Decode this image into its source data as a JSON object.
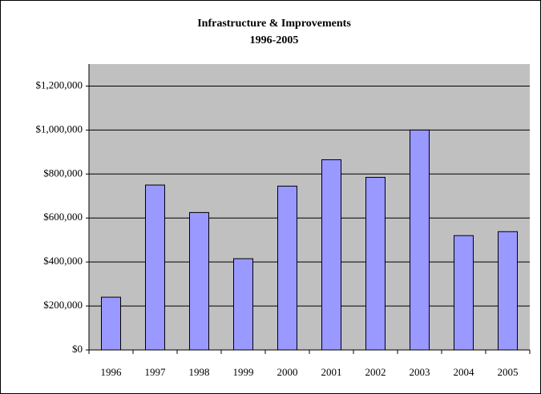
{
  "chart_data": {
    "type": "bar",
    "title": "Infrastructure & Improvements",
    "subtitle": "1996-2005",
    "categories": [
      "1996",
      "1997",
      "1998",
      "1999",
      "2000",
      "2001",
      "2002",
      "2003",
      "2004",
      "2005"
    ],
    "values": [
      240000,
      750000,
      625000,
      415000,
      745000,
      865000,
      785000,
      1000000,
      520000,
      538000
    ],
    "color": "#9999ff",
    "ylim": [
      0,
      1300000
    ],
    "yticks": [
      {
        "value": 0,
        "label": "$0"
      },
      {
        "value": 200000,
        "label": "$200,000"
      },
      {
        "value": 400000,
        "label": "$400,000"
      },
      {
        "value": 600000,
        "label": "$600,000"
      },
      {
        "value": 800000,
        "label": "$800,000"
      },
      {
        "value": 1000000,
        "label": "$1,000,000"
      },
      {
        "value": 1200000,
        "label": "$1,200,000"
      }
    ],
    "grid": true
  }
}
